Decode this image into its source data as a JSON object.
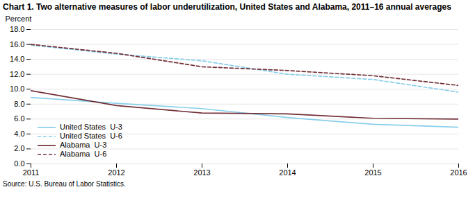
{
  "chart_data": {
    "type": "line",
    "title": "Chart 1. Two alternative measures of labor underutilization, United States and Alabama, 2011–16 annual averages",
    "ylabel": "Percent",
    "source": "Source: U.S. Bureau of Labor Statistics.",
    "x": [
      2011,
      2012,
      2013,
      2014,
      2015,
      2016
    ],
    "series": [
      {
        "name": "United States  U-3",
        "color": "#87CEEB",
        "line_style": "solid",
        "values": [
          8.9,
          8.1,
          7.4,
          6.2,
          5.3,
          4.9
        ]
      },
      {
        "name": "United States  U-6",
        "color": "#87CEEB",
        "line_style": "dashed",
        "values": [
          15.9,
          14.7,
          13.8,
          12.0,
          11.3,
          9.6
        ]
      },
      {
        "name": "Alabama  U-3",
        "color": "#722F37",
        "line_style": "solid",
        "values": [
          9.8,
          7.8,
          6.8,
          6.7,
          6.1,
          6.0
        ]
      },
      {
        "name": "Alabama  U-6",
        "color": "#722F37",
        "line_style": "dashed",
        "values": [
          16.0,
          14.8,
          13.0,
          12.5,
          11.8,
          10.5
        ]
      }
    ],
    "xlim": [
      2011,
      2016
    ],
    "xticks": [
      2011,
      2012,
      2013,
      2014,
      2015,
      2016
    ],
    "ylim": [
      0,
      18
    ],
    "yticks": [
      {
        "value": 0,
        "label": "0.0"
      },
      {
        "value": 2,
        "label": "2.0"
      },
      {
        "value": 4,
        "label": "4.0"
      },
      {
        "value": 6,
        "label": "6.0"
      },
      {
        "value": 8,
        "label": "8.0"
      },
      {
        "value": 10,
        "label": "10.0"
      },
      {
        "value": 12,
        "label": "12.0"
      },
      {
        "value": 14,
        "label": "14.0"
      },
      {
        "value": 16,
        "label": "16.0"
      },
      {
        "value": 18,
        "label": "18.0"
      }
    ],
    "grid": true,
    "legend": "lower left"
  }
}
